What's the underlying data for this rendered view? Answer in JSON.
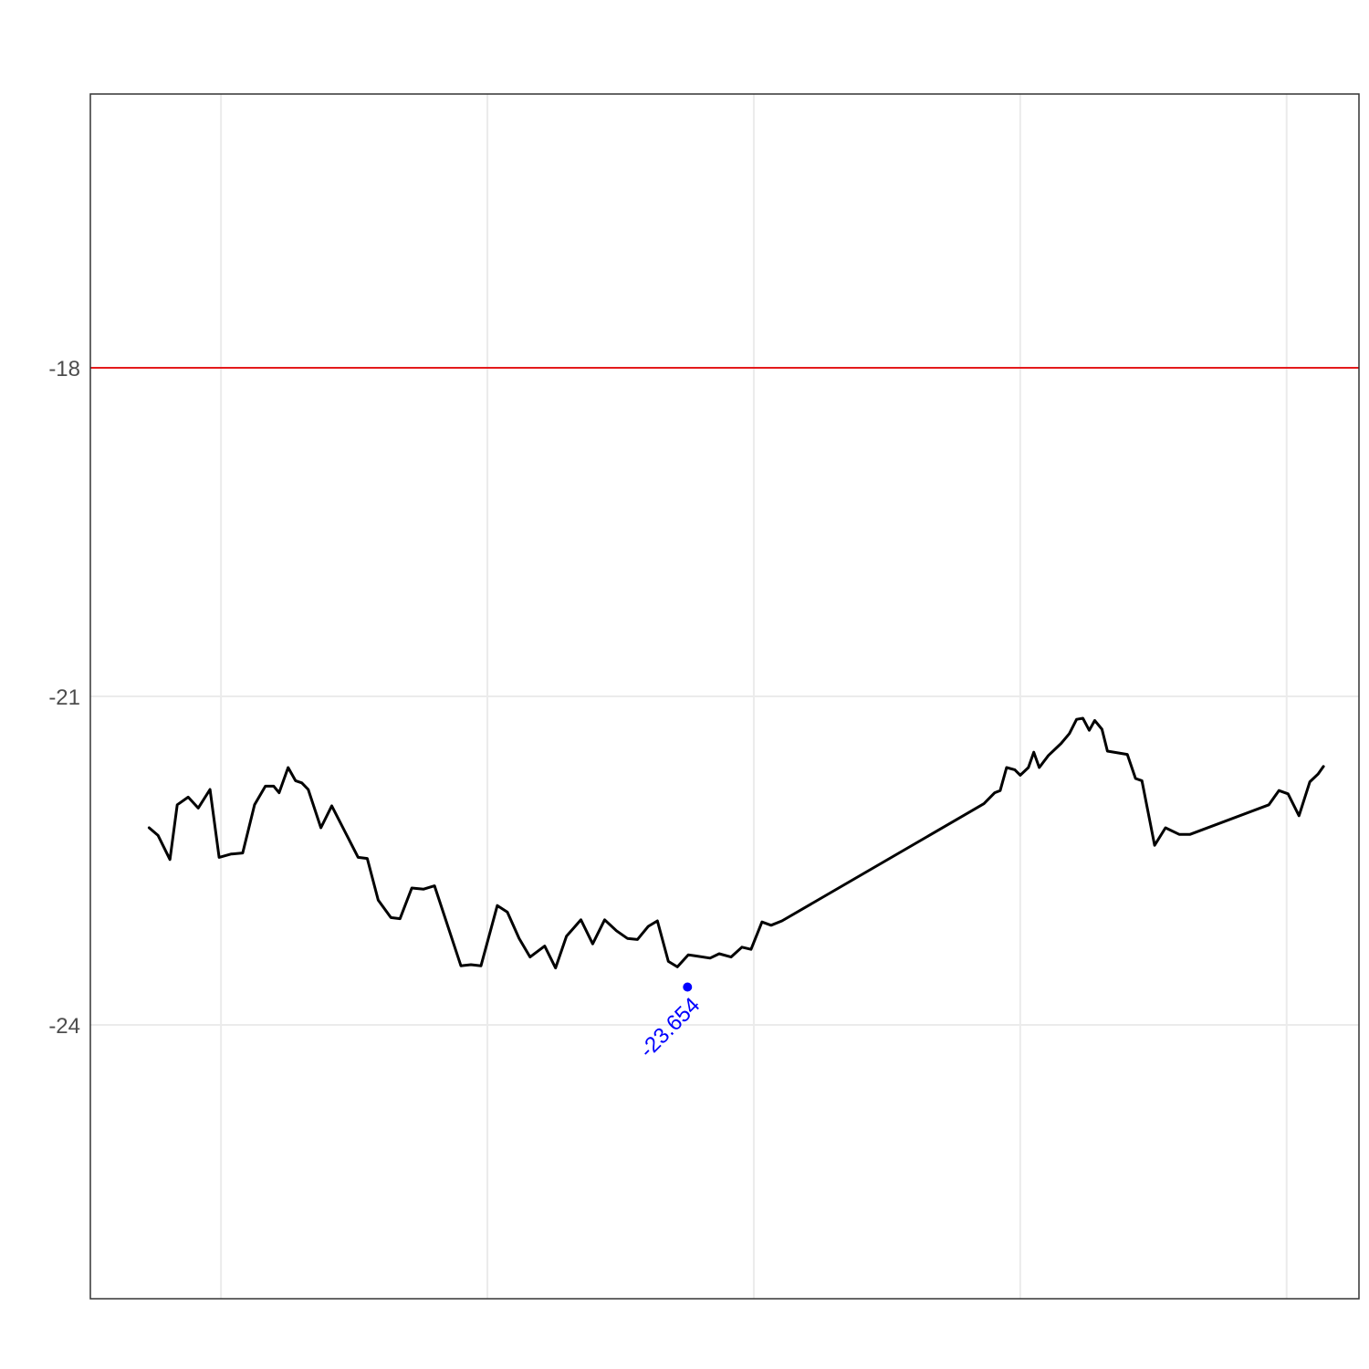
{
  "chart_data": {
    "type": "line",
    "title": "",
    "xlabel": "",
    "ylabel": "",
    "ylim": [
      -26.5,
      -15.5
    ],
    "xlim": [
      0,
      1
    ],
    "y_ticks": [
      -18,
      -21,
      -24
    ],
    "y_tick_labels": [
      "-18",
      "-21",
      "-24"
    ],
    "x_gridlines": [
      0.103,
      0.313,
      0.523,
      0.733,
      0.943
    ],
    "grid": true,
    "reference_line": {
      "y": -18,
      "color": "#e41a1c"
    },
    "series": [
      {
        "color": "#000000",
        "points": [
          [
            0.0463,
            -22.2
          ],
          [
            0.0534,
            -22.27
          ],
          [
            0.0627,
            -22.49
          ],
          [
            0.0685,
            -21.99
          ],
          [
            0.0771,
            -21.92
          ],
          [
            0.085,
            -22.02
          ],
          [
            0.0943,
            -21.85
          ],
          [
            0.1015,
            -22.47
          ],
          [
            0.1108,
            -22.44
          ],
          [
            0.1201,
            -22.43
          ],
          [
            0.1294,
            -21.99
          ],
          [
            0.138,
            -21.82
          ],
          [
            0.1445,
            -21.82
          ],
          [
            0.1488,
            -21.88
          ],
          [
            0.1559,
            -21.65
          ],
          [
            0.1617,
            -21.77
          ],
          [
            0.1667,
            -21.79
          ],
          [
            0.1717,
            -21.85
          ],
          [
            0.1817,
            -22.2
          ],
          [
            0.1903,
            -22.0
          ],
          [
            0.2111,
            -22.47
          ],
          [
            0.2183,
            -22.48
          ],
          [
            0.2269,
            -22.86
          ],
          [
            0.2369,
            -23.02
          ],
          [
            0.2441,
            -23.03
          ],
          [
            0.2534,
            -22.75
          ],
          [
            0.2627,
            -22.76
          ],
          [
            0.2713,
            -22.73
          ],
          [
            0.2921,
            -23.46
          ],
          [
            0.3,
            -23.45
          ],
          [
            0.3079,
            -23.46
          ],
          [
            0.3208,
            -22.91
          ],
          [
            0.3287,
            -22.97
          ],
          [
            0.338,
            -23.21
          ],
          [
            0.3466,
            -23.38
          ],
          [
            0.3581,
            -23.28
          ],
          [
            0.3667,
            -23.48
          ],
          [
            0.3753,
            -23.19
          ],
          [
            0.3867,
            -23.04
          ],
          [
            0.396,
            -23.26
          ],
          [
            0.4054,
            -23.04
          ],
          [
            0.4147,
            -23.14
          ],
          [
            0.4233,
            -23.21
          ],
          [
            0.4312,
            -23.22
          ],
          [
            0.4398,
            -23.1
          ],
          [
            0.447,
            -23.05
          ],
          [
            0.4556,
            -23.42
          ],
          [
            0.4627,
            -23.47
          ],
          [
            0.4713,
            -23.36
          ],
          [
            0.4771,
            -23.37
          ],
          [
            0.4885,
            -23.39
          ],
          [
            0.4957,
            -23.35
          ],
          [
            0.505,
            -23.38
          ],
          [
            0.5136,
            -23.29
          ],
          [
            0.5208,
            -23.31
          ],
          [
            0.5294,
            -23.06
          ],
          [
            0.5366,
            -23.09
          ],
          [
            0.5452,
            -23.05
          ],
          [
            0.7044,
            -21.98
          ],
          [
            0.7129,
            -21.88
          ],
          [
            0.7172,
            -21.86
          ],
          [
            0.7222,
            -21.65
          ],
          [
            0.7287,
            -21.67
          ],
          [
            0.733,
            -21.72
          ],
          [
            0.7394,
            -21.65
          ],
          [
            0.7437,
            -21.51
          ],
          [
            0.748,
            -21.65
          ],
          [
            0.7552,
            -21.54
          ],
          [
            0.7652,
            -21.43
          ],
          [
            0.7717,
            -21.34
          ],
          [
            0.7774,
            -21.21
          ],
          [
            0.7824,
            -21.2
          ],
          [
            0.7874,
            -21.31
          ],
          [
            0.7917,
            -21.22
          ],
          [
            0.7974,
            -21.3
          ],
          [
            0.8017,
            -21.5
          ],
          [
            0.8174,
            -21.53
          ],
          [
            0.8239,
            -21.75
          ],
          [
            0.8289,
            -21.77
          ],
          [
            0.8389,
            -22.36
          ],
          [
            0.8475,
            -22.2
          ],
          [
            0.8583,
            -22.26
          ],
          [
            0.8669,
            -22.26
          ],
          [
            0.929,
            -21.99
          ],
          [
            0.9369,
            -21.86
          ],
          [
            0.9441,
            -21.89
          ],
          [
            0.9527,
            -22.09
          ],
          [
            0.9613,
            -21.78
          ],
          [
            0.9677,
            -21.71
          ],
          [
            0.972,
            -21.64
          ]
        ]
      }
    ],
    "highlight_point": {
      "x": 0.4707,
      "y": -23.654,
      "label": "-23.654",
      "color": "#0000ff"
    }
  }
}
